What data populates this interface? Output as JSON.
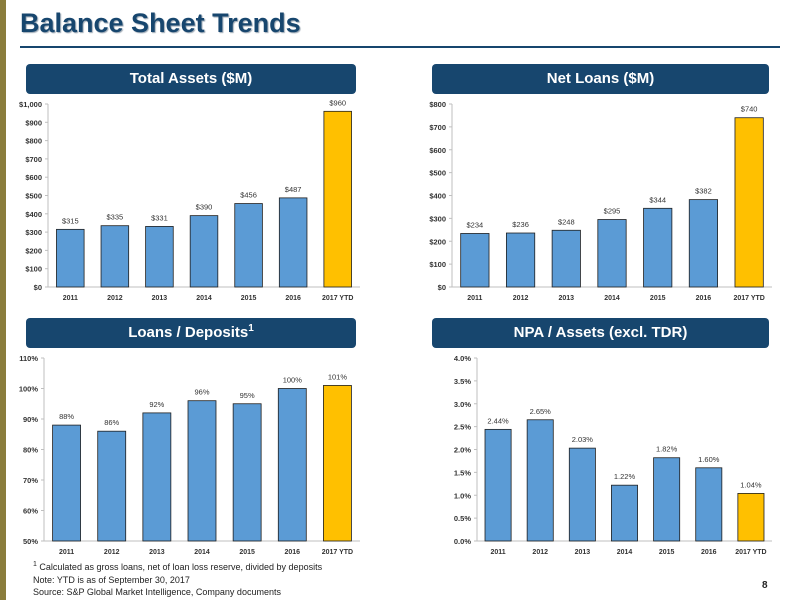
{
  "page": {
    "title": "Balance Sheet Trends",
    "footnote_marker": "1",
    "footnote": "Calculated as gross loans, net of loan loss reserve, divided by deposits",
    "note": "Note: YTD is as of September 30, 2017",
    "source": "Source: S&P Global Market Intelligence, Company documents",
    "page_number": "8"
  },
  "colors": {
    "bar": "#5b9bd5",
    "highlight": "#ffc000",
    "banner": "#17466e",
    "accent_bar": "#8a7d3c"
  },
  "chart_data": [
    {
      "type": "bar",
      "title": "Total Assets ($M)",
      "categories": [
        "2011",
        "2012",
        "2013",
        "2014",
        "2015",
        "2016",
        "2017 YTD"
      ],
      "values": [
        315,
        335,
        331,
        390,
        456,
        487,
        960
      ],
      "value_labels": [
        "$315",
        "$335",
        "$331",
        "$390",
        "$456",
        "$487",
        "$960"
      ],
      "ylim": [
        0,
        1000
      ],
      "yticks": [
        0,
        100,
        200,
        300,
        400,
        500,
        600,
        700,
        800,
        900,
        1000
      ],
      "ytick_labels": [
        "$0",
        "$100",
        "$200",
        "$300",
        "$400",
        "$500",
        "$600",
        "$700",
        "$800",
        "$900",
        "$1,000"
      ],
      "highlight_index": 6,
      "grid": false
    },
    {
      "type": "bar",
      "title": "Net Loans ($M)",
      "categories": [
        "2011",
        "2012",
        "2013",
        "2014",
        "2015",
        "2016",
        "2017 YTD"
      ],
      "values": [
        234,
        236,
        248,
        295,
        344,
        382,
        740
      ],
      "value_labels": [
        "$234",
        "$236",
        "$248",
        "$295",
        "$344",
        "$382",
        "$740"
      ],
      "ylim": [
        0,
        800
      ],
      "yticks": [
        0,
        100,
        200,
        300,
        400,
        500,
        600,
        700,
        800
      ],
      "ytick_labels": [
        "$0",
        "$100",
        "$200",
        "$300",
        "$400",
        "$500",
        "$600",
        "$700",
        "$800"
      ],
      "highlight_index": 6,
      "grid": false
    },
    {
      "type": "bar",
      "title": "Loans / Deposits",
      "title_superscript": "1",
      "categories": [
        "2011",
        "2012",
        "2013",
        "2014",
        "2015",
        "2016",
        "2017 YTD"
      ],
      "values": [
        88,
        86,
        92,
        96,
        95,
        100,
        101
      ],
      "value_labels": [
        "88%",
        "86%",
        "92%",
        "96%",
        "95%",
        "100%",
        "101%"
      ],
      "ylim": [
        50,
        110
      ],
      "yticks": [
        50,
        60,
        70,
        80,
        90,
        100,
        110
      ],
      "ytick_labels": [
        "50%",
        "60%",
        "70%",
        "80%",
        "90%",
        "100%",
        "110%"
      ],
      "highlight_index": 6,
      "grid": false
    },
    {
      "type": "bar",
      "title": "NPA / Assets (excl. TDR)",
      "categories": [
        "2011",
        "2012",
        "2013",
        "2014",
        "2015",
        "2016",
        "2017 YTD"
      ],
      "values": [
        2.44,
        2.65,
        2.03,
        1.22,
        1.82,
        1.6,
        1.04
      ],
      "value_labels": [
        "2.44%",
        "2.65%",
        "2.03%",
        "1.22%",
        "1.82%",
        "1.60%",
        "1.04%"
      ],
      "ylim": [
        0,
        4
      ],
      "yticks": [
        0,
        0.5,
        1,
        1.5,
        2,
        2.5,
        3,
        3.5,
        4
      ],
      "ytick_labels": [
        "0.0%",
        "0.5%",
        "1.0%",
        "1.5%",
        "2.0%",
        "2.5%",
        "3.0%",
        "3.5%",
        "4.0%"
      ],
      "highlight_index": 6,
      "grid": false
    }
  ]
}
